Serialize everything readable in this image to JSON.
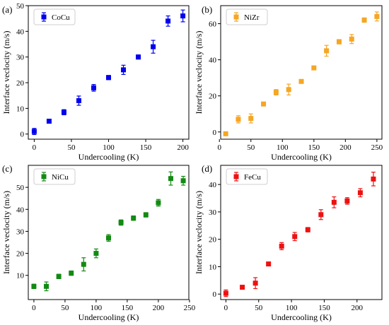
{
  "chart_data": [
    {
      "panel_label": "(a)",
      "type": "scatter",
      "xlabel": "Undercooling (K)",
      "ylabel": "Interface veclocity (m/s)",
      "xlim": [
        -8,
        208
      ],
      "ylim": [
        -2,
        50
      ],
      "xticks": [
        0,
        50,
        100,
        150,
        200
      ],
      "yticks": [
        0,
        10,
        20,
        30,
        40,
        50
      ],
      "legend_position": "top-left",
      "series": [
        {
          "name": "CoCu",
          "color": "#0000ee",
          "marker": "square",
          "x": [
            0,
            20,
            40,
            60,
            80,
            100,
            120,
            140,
            160,
            180,
            200
          ],
          "y": [
            1,
            5,
            8.5,
            13,
            18,
            22,
            25,
            30,
            34,
            44,
            46
          ],
          "err": [
            1.2,
            0.6,
            1.0,
            1.8,
            1.3,
            0.8,
            1.8,
            0.8,
            2.5,
            2.0,
            2.3
          ]
        }
      ]
    },
    {
      "panel_label": "(b)",
      "type": "scatter",
      "xlabel": "Undercooling (K)",
      "ylabel": "Interface veclocity (m/s)",
      "xlim": [
        2,
        258
      ],
      "ylim": [
        -4,
        70
      ],
      "xticks": [
        0,
        50,
        100,
        150,
        200,
        250
      ],
      "yticks": [
        0,
        20,
        40,
        60
      ],
      "legend_position": "top-left",
      "series": [
        {
          "name": "NiZr",
          "color": "#f5a623",
          "marker": "square",
          "x": [
            10,
            30,
            50,
            70,
            90,
            110,
            130,
            150,
            170,
            190,
            210,
            230,
            250
          ],
          "y": [
            -1,
            7,
            7.5,
            15.5,
            22,
            23.5,
            28,
            35.5,
            45,
            50,
            51.5,
            62,
            64
          ],
          "err": [
            0.5,
            2,
            2.5,
            1,
            1.5,
            3,
            1,
            1,
            3,
            1.2,
            2.5,
            1.2,
            2.5
          ]
        }
      ]
    },
    {
      "panel_label": "(c)",
      "type": "scatter",
      "xlabel": "Undercooling (K)",
      "ylabel": "Interface veclocity (m/s)",
      "xlim": [
        -9,
        249
      ],
      "ylim": [
        -1,
        60
      ],
      "xticks": [
        0,
        50,
        100,
        150,
        200,
        250
      ],
      "yticks": [
        10,
        20,
        30,
        40,
        50
      ],
      "legend_position": "top-left",
      "series": [
        {
          "name": "NiCu",
          "color": "#138a13",
          "marker": "square",
          "x": [
            0,
            20,
            40,
            60,
            80,
            100,
            120,
            140,
            160,
            180,
            200,
            220,
            240
          ],
          "y": [
            5,
            5,
            9.5,
            11,
            15,
            20,
            27,
            34,
            36,
            37.5,
            43,
            54,
            53
          ],
          "err": [
            1,
            2,
            1,
            1,
            3,
            2,
            1.5,
            1.2,
            1,
            1,
            1.5,
            3,
            2
          ]
        }
      ]
    },
    {
      "panel_label": "(d)",
      "type": "scatter",
      "xlabel": "Undercooling (K)",
      "ylabel": "Interface veclocity (m/s)",
      "xlim": [
        -8,
        238
      ],
      "ylim": [
        -2,
        47
      ],
      "xticks": [
        0,
        50,
        100,
        150,
        200
      ],
      "yticks": [
        0,
        10,
        20,
        30,
        40
      ],
      "legend_position": "top-left",
      "series": [
        {
          "name": "FeCu",
          "color": "#ee1111",
          "marker": "square",
          "x": [
            0,
            25,
            45,
            65,
            85,
            105,
            125,
            145,
            165,
            185,
            205,
            225
          ],
          "y": [
            0.3,
            2.5,
            4,
            11,
            17.5,
            21,
            23.5,
            29,
            33.5,
            34,
            37,
            42
          ],
          "err": [
            1.2,
            0.5,
            2,
            0.6,
            1.3,
            1.5,
            0.8,
            1.8,
            2,
            1.2,
            1.5,
            2.5
          ]
        }
      ]
    }
  ]
}
